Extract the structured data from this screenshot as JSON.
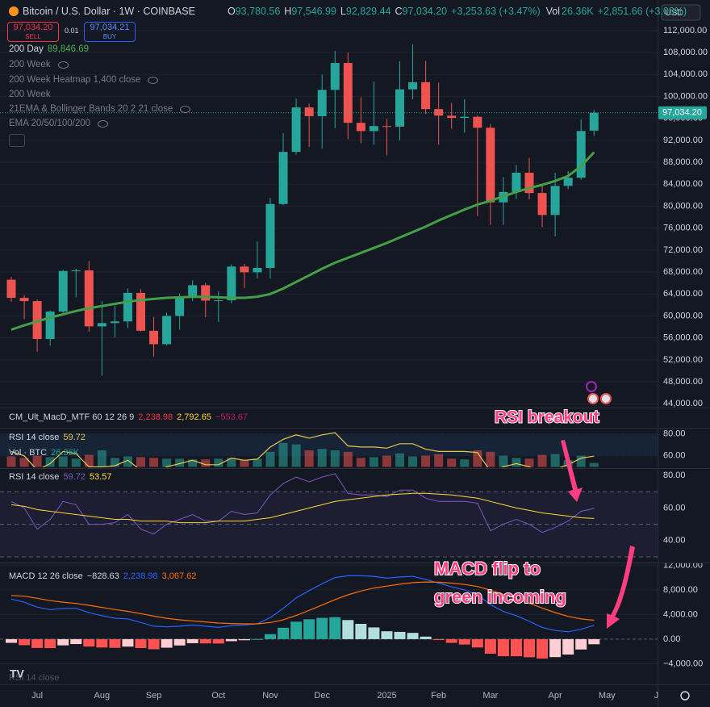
{
  "toolbar": {
    "currency": "USD"
  },
  "legend": {
    "symbol": "Bitcoin / U.S. Dollar · 1W · COINBASE",
    "ohlc": [
      {
        "key": "O",
        "value": "93,780.56"
      },
      {
        "key": "H",
        "value": "97,546.99"
      },
      {
        "key": "L",
        "value": "92,829.44"
      },
      {
        "key": "C",
        "value": "97,034.20"
      }
    ],
    "change": "+3,253.63 (+3.47%)",
    "volume": {
      "key": "Vol",
      "value": "26.36K",
      "change": "+2,851.66 (+3.03%)"
    }
  },
  "trade": {
    "sell_price": "97,034.20",
    "sell": "SELL",
    "spread": "0.01",
    "buy_price": "97,034.21",
    "buy": "BUY"
  },
  "indicators": [
    {
      "name": "200 Week"
    },
    {
      "name": "200 Week Heatmap 1,400 close"
    },
    {
      "name": "200 Week"
    },
    {
      "name": "21EMA & Bollinger Bands 20 2 21 close"
    },
    {
      "name": "EMA 20/50/100/200"
    }
  ],
  "pane_headers": {
    "cm": {
      "name": "CM_Ult_MacD_MTF 60 12 26 9",
      "values": [
        "2,238.98",
        "2,792.65",
        "−553.67"
      ]
    },
    "rsi_bottom": {
      "name": "RSI 14 close"
    }
  },
  "chart_data": [
    {
      "type": "candlestick",
      "categories": [
        null,
        null,
        "Jul",
        null,
        null,
        null,
        null,
        "Aug",
        null,
        null,
        null,
        "Sep",
        null,
        null,
        null,
        null,
        "Oct",
        null,
        null,
        null,
        "Nov",
        null,
        null,
        null,
        "Dec",
        null,
        null,
        null,
        null,
        "2025",
        null,
        null,
        null,
        "Feb",
        null,
        null,
        null,
        "Mar",
        null,
        null,
        null,
        null,
        "Apr",
        null,
        null,
        null,
        "May",
        null,
        null,
        null,
        "Ju"
      ],
      "open": [
        66600,
        63300,
        62700,
        55800,
        60800,
        68200,
        68300,
        58100,
        58700,
        59000,
        64200,
        57300,
        54850,
        60000,
        63600,
        65600,
        62800,
        62850,
        69000,
        67950,
        68750,
        80400,
        89900,
        98000,
        96400,
        101200,
        106100,
        95200,
        93700,
        94600,
        94500,
        101300,
        102600,
        97700,
        96500,
        96100,
        96300,
        94300,
        80700,
        82600,
        86100,
        82400,
        78400,
        83700,
        85200,
        93780.56,
        null,
        null,
        null,
        null,
        null
      ],
      "high": [
        67100,
        63800,
        63000,
        61000,
        68400,
        68600,
        70000,
        62700,
        61800,
        65000,
        64900,
        59800,
        60600,
        64100,
        66500,
        66000,
        64500,
        69400,
        69500,
        73600,
        81500,
        93300,
        99600,
        98700,
        104000,
        108300,
        108000,
        99900,
        102700,
        95900,
        106400,
        109500,
        106500,
        102500,
        98800,
        99500,
        96500,
        95000,
        85300,
        87500,
        88800,
        84000,
        86100,
        86400,
        95800,
        97546.99,
        null,
        null,
        null,
        null,
        null
      ],
      "low": [
        62600,
        59400,
        53500,
        54600,
        60600,
        63400,
        57100,
        49100,
        56100,
        57800,
        57200,
        52600,
        54600,
        57500,
        62700,
        59800,
        58900,
        62300,
        65100,
        66800,
        66800,
        80200,
        89400,
        90800,
        90500,
        94200,
        92200,
        91500,
        91200,
        89300,
        92000,
        99500,
        96800,
        91200,
        94100,
        93400,
        78200,
        76600,
        76600,
        81300,
        81200,
        76200,
        74500,
        83100,
        84800,
        92829.44,
        null,
        null,
        null,
        null,
        null
      ],
      "close": [
        63300,
        62700,
        55800,
        60800,
        68200,
        68300,
        58100,
        58700,
        59000,
        64200,
        57300,
        54850,
        60000,
        63600,
        65600,
        62800,
        62850,
        69000,
        67950,
        68750,
        80400,
        89900,
        98000,
        96400,
        101200,
        106100,
        95200,
        93700,
        94600,
        94500,
        101300,
        102600,
        97700,
        96500,
        96100,
        96300,
        94300,
        80700,
        82600,
        86100,
        82400,
        78400,
        83700,
        85200,
        93700,
        97034.2,
        null,
        null,
        null,
        null,
        null
      ],
      "up_color": "#26a69a",
      "down_color": "#ef5350",
      "ylim": [
        43300,
        116700
      ],
      "yticks": [
        {
          "value": 112000,
          "label": "112,000.00"
        },
        {
          "value": 108000,
          "label": "108,000.00"
        },
        {
          "value": 104000,
          "label": "104,000.00"
        },
        {
          "value": 100000,
          "label": "100,000.00"
        },
        {
          "value": 96000,
          "label": "96,000.00"
        },
        {
          "value": 92000,
          "label": "92,000.00"
        },
        {
          "value": 88000,
          "label": "88,000.00"
        },
        {
          "value": 84000,
          "label": "84,000.00"
        },
        {
          "value": 80000,
          "label": "80,000.00"
        },
        {
          "value": 76000,
          "label": "76,000.00"
        },
        {
          "value": 72000,
          "label": "72,000.00"
        },
        {
          "value": 68000,
          "label": "68,000.00"
        },
        {
          "value": 64000,
          "label": "64,000.00"
        },
        {
          "value": 60000,
          "label": "60,000.00"
        },
        {
          "value": 56000,
          "label": "56,000.00"
        },
        {
          "value": 52000,
          "label": "52,000.00"
        },
        {
          "value": 48000,
          "label": "48,000.00"
        },
        {
          "value": 44000,
          "label": "44,000.00"
        }
      ],
      "grid": true,
      "last_price_label": "97,034.20",
      "series": [
        {
          "name": "200 Day",
          "legend_value": "89,846.69",
          "color": "#43a047",
          "values": [
            57500,
            58300,
            59000,
            59700,
            60300,
            60900,
            61400,
            61800,
            62200,
            62600,
            62900,
            63100,
            63300,
            63400,
            63500,
            63500,
            63400,
            63300,
            63300,
            63500,
            64000,
            65000,
            66200,
            67400,
            68600,
            69700,
            70600,
            71500,
            72400,
            73300,
            74300,
            75300,
            76300,
            77400,
            78400,
            79400,
            80300,
            81000,
            81800,
            82600,
            83300,
            83900,
            84600,
            85500,
            87300,
            89846.69,
            null,
            null,
            null,
            null,
            null
          ]
        }
      ]
    },
    {
      "type": "volume-rsi",
      "label": "RSI 14 close",
      "ylim": [
        50,
        84
      ],
      "yticks": [
        {
          "value": 80,
          "label": "80.00"
        },
        {
          "value": 60,
          "label": "60.00"
        }
      ],
      "y2lim": [
        0,
        250
      ],
      "series": [
        {
          "name": "Vol · BTC",
          "axis": "y2",
          "legend_value": "26.36K",
          "values": [
            70,
            60,
            75,
            65,
            70,
            55,
            80,
            110,
            60,
            70,
            65,
            60,
            55,
            55,
            50,
            50,
            55,
            60,
            45,
            55,
            100,
            160,
            150,
            110,
            120,
            110,
            100,
            60,
            65,
            75,
            90,
            70,
            75,
            85,
            55,
            50,
            110,
            100,
            75,
            60,
            55,
            80,
            85,
            45,
            75,
            26.36,
            null,
            null,
            null,
            null,
            null
          ]
        }
      ],
      "up_color": "#26a69a",
      "down_color": "#ef5350",
      "line_color": "#e6c84d"
    },
    {
      "type": "line",
      "label": "RSI 14 close",
      "ylim": [
        27.5,
        83
      ],
      "yticks": [
        {
          "value": 80,
          "label": "80.00"
        },
        {
          "value": 60,
          "label": "60.00"
        },
        {
          "value": 40,
          "label": "40.00"
        }
      ],
      "hlines": [
        70,
        50,
        30
      ],
      "band": [
        30,
        70
      ],
      "band_color": "#7e57c2",
      "series": [
        {
          "color": "#7e57c2",
          "values": [
            64,
            60,
            47,
            53,
            64,
            62,
            50,
            50,
            51,
            56,
            47,
            44,
            50,
            53,
            56,
            52,
            52,
            58,
            56,
            57,
            68,
            75,
            79,
            76,
            79,
            81,
            69,
            68,
            68,
            67,
            71,
            71,
            66,
            64,
            64,
            64,
            63,
            46,
            50,
            53,
            50,
            45,
            48,
            52,
            58,
            59.72,
            null,
            null,
            null,
            null,
            null
          ]
        },
        {
          "color": "#fdd835",
          "values": [
            62,
            61,
            59,
            58,
            57,
            56,
            55,
            54,
            53,
            53,
            52,
            52,
            52,
            51,
            51,
            51,
            52,
            52,
            52,
            53,
            54,
            56,
            58,
            60,
            62,
            64,
            65,
            66,
            67,
            68,
            68.5,
            69,
            69,
            68.5,
            68,
            67,
            66,
            64,
            62,
            60,
            58.5,
            57,
            56,
            55,
            54,
            53.57,
            null,
            null,
            null,
            null,
            null
          ]
        }
      ]
    },
    {
      "type": "macd",
      "label": "MACD 12 26 close",
      "ylim": [
        -7350,
        12050
      ],
      "yticks": [
        {
          "value": 12000,
          "label": "12,000.00"
        },
        {
          "value": 8000,
          "label": "8,000.00"
        },
        {
          "value": 4000,
          "label": "4,000.00"
        },
        {
          "value": 0,
          "label": "0.00"
        },
        {
          "value": -4000,
          "label": "−4,000.00"
        }
      ],
      "hist_colors": [
        "#26a69a",
        "#b2dfdb",
        "#ff5252",
        "#ffcdd2"
      ],
      "series": [
        {
          "kind": "histogram",
          "legend_value": "−828.63",
          "values": [
            -600,
            -980,
            -1430,
            -1460,
            -1010,
            -800,
            -1200,
            -1360,
            -1410,
            -1210,
            -1450,
            -1640,
            -1390,
            -1030,
            -660,
            -690,
            -710,
            -330,
            -180,
            20,
            810,
            1850,
            2840,
            3230,
            3460,
            3570,
            3100,
            2480,
            1900,
            1280,
            1180,
            1020,
            410,
            -150,
            -600,
            -880,
            -1350,
            -2360,
            -2770,
            -2780,
            -2940,
            -3150,
            -2920,
            -2500,
            -1680,
            -828.63,
            null,
            null,
            null,
            null,
            null
          ]
        },
        {
          "kind": "line",
          "color": "#2962ff",
          "legend_value": "2,238.98",
          "values": [
            6500,
            6000,
            5200,
            4800,
            5000,
            5000,
            4300,
            3800,
            3400,
            3300,
            2700,
            2100,
            2000,
            2100,
            2300,
            2100,
            1900,
            2200,
            2300,
            2500,
            3500,
            5000,
            6700,
            7900,
            9000,
            10000,
            10300,
            10300,
            10200,
            9900,
            10100,
            10200,
            9700,
            9100,
            8500,
            8000,
            7200,
            5600,
            4500,
            3800,
            2900,
            1900,
            1400,
            1200,
            1600,
            2238.98,
            null,
            null,
            null,
            null,
            null
          ]
        },
        {
          "kind": "line",
          "color": "#ff6d00",
          "legend_value": "3,067.62",
          "values": [
            7100,
            6980,
            6630,
            6260,
            6010,
            5800,
            5500,
            5160,
            4810,
            4510,
            4150,
            3740,
            3390,
            3130,
            2960,
            2790,
            2610,
            2530,
            2480,
            2480,
            2690,
            3150,
            3860,
            4670,
            5540,
            6430,
            7200,
            7820,
            8300,
            8620,
            8920,
            9180,
            9290,
            9250,
            9100,
            8880,
            8550,
            7960,
            7270,
            6580,
            5840,
            5050,
            4320,
            3700,
            3280,
            3067.62,
            null,
            null,
            null,
            null,
            null
          ]
        }
      ]
    }
  ],
  "annotations": [
    {
      "text": "RSI breakout"
    },
    {
      "lines": [
        "MACD flip to",
        "green incoming"
      ]
    }
  ]
}
